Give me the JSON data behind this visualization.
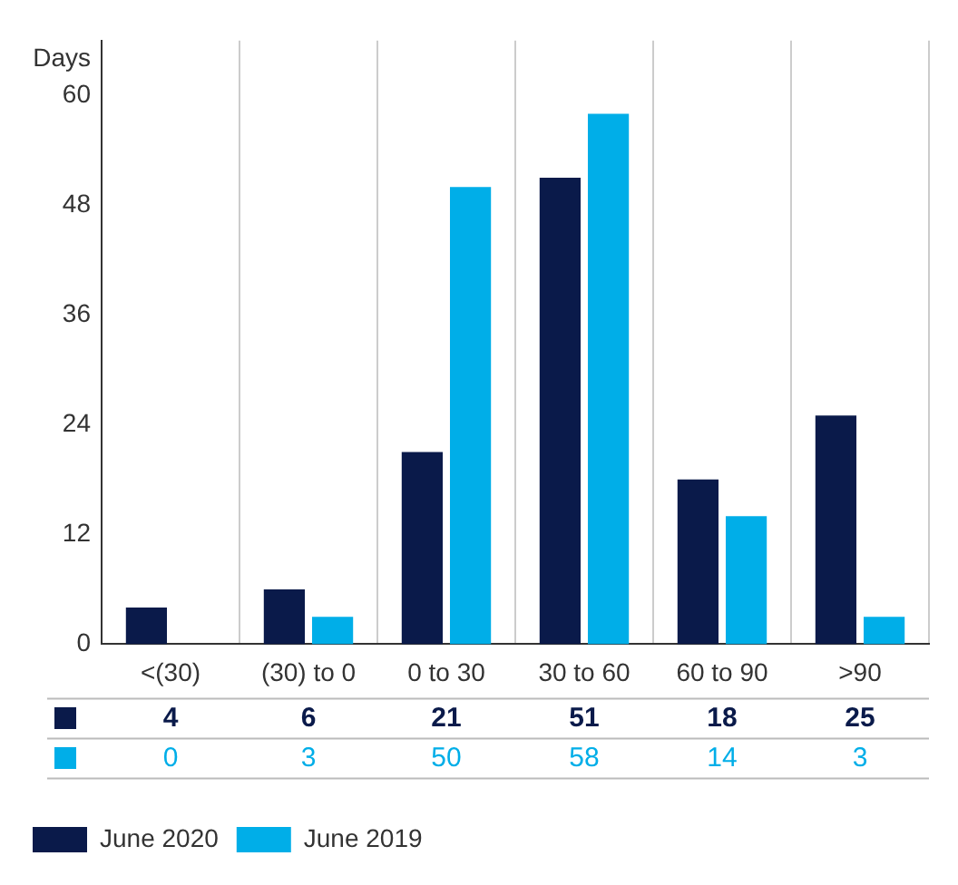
{
  "chart_data": {
    "type": "bar",
    "ylabel": "Days",
    "categories": [
      "<(30)",
      "(30) to 0",
      "0 to 30",
      "30 to 60",
      "60 to 90",
      ">90"
    ],
    "series": [
      {
        "name": "June 2020",
        "color": "#0a1a4a",
        "values": [
          4,
          6,
          21,
          51,
          18,
          25
        ]
      },
      {
        "name": "June 2019",
        "color": "#00aee8",
        "values": [
          0,
          3,
          50,
          58,
          14,
          3
        ]
      }
    ],
    "ylim": [
      0,
      66
    ],
    "yticks": [
      0,
      12,
      24,
      36,
      48,
      60
    ],
    "grid": "x",
    "data_labels": true,
    "legend": "bottom left"
  }
}
